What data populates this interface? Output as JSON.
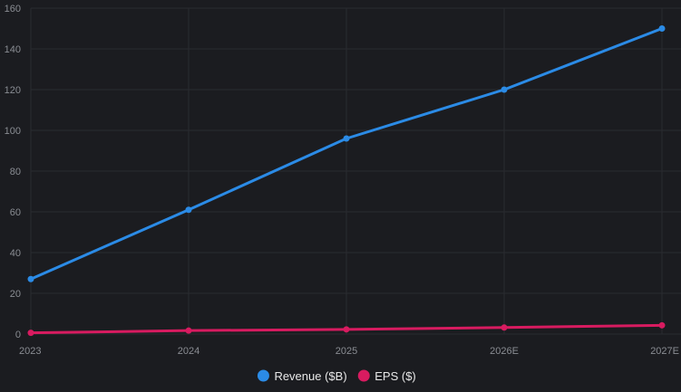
{
  "chart_data": {
    "type": "line",
    "categories": [
      "2023",
      "2024",
      "2025",
      "2026E",
      "2027E"
    ],
    "series": [
      {
        "name": "Revenue ($B)",
        "values": [
          27,
          61,
          96,
          120,
          150
        ],
        "color": "#2b8be6"
      },
      {
        "name": "EPS ($)",
        "values": [
          0.6,
          1.7,
          2.3,
          3.2,
          4.3
        ],
        "color": "#d81b60"
      }
    ],
    "ylim": [
      0,
      160
    ],
    "yticks": [
      "0",
      "20",
      "40",
      "60",
      "80",
      "100",
      "120",
      "140",
      "160"
    ],
    "grid": true,
    "legend_position": "bottom-center",
    "title": "",
    "xlabel": "",
    "ylabel": ""
  },
  "colors": {
    "background": "#1b1c20",
    "grid": "#2a2b30",
    "tick_text": "#8a8d93",
    "legend_text": "#e8e8e8"
  }
}
